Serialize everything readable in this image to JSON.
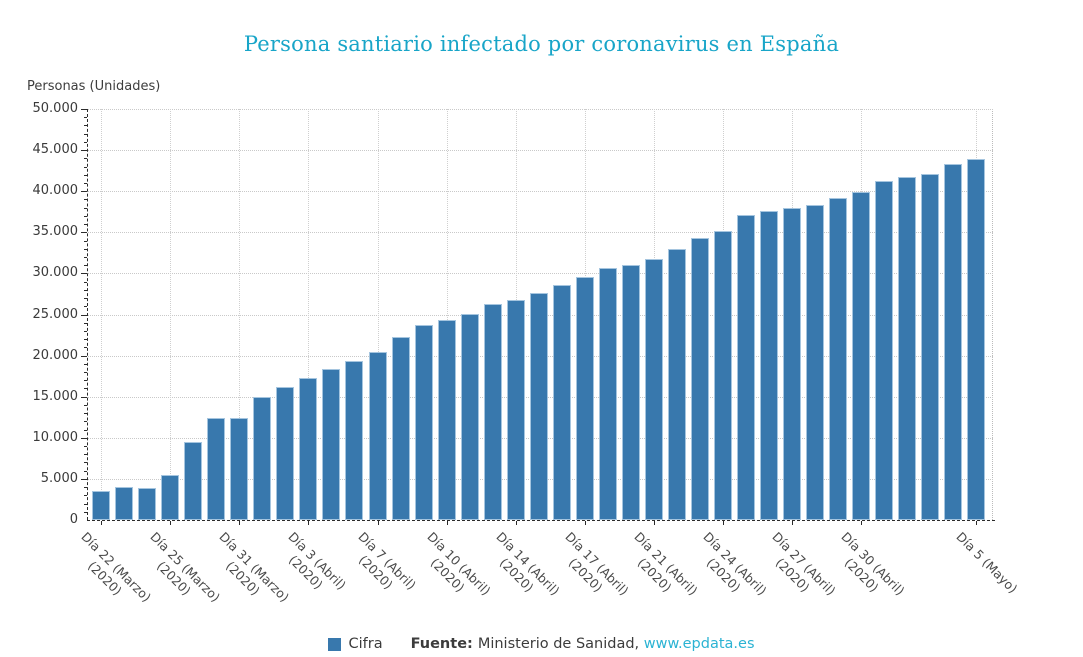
{
  "title": "Persona santiario infectado por coronavirus en España",
  "y_axis_title": "Personas (Unidades)",
  "legend": {
    "label": "Cifra"
  },
  "source": {
    "prefix": "Fuente:",
    "text": "Ministerio de Sanidad,",
    "link": "www.epdata.es"
  },
  "colors": {
    "bar": "#3878ad",
    "title": "#18a5c8",
    "link": "#2bb3d3",
    "grid": "#c9c9c9",
    "axis": "#2b2b2b",
    "text": "#3d3d3d"
  },
  "chart_data": {
    "type": "bar",
    "title": "Persona santiario infectado por coronavirus en España",
    "xlabel": "",
    "ylabel": "Personas (Unidades)",
    "ylim": [
      0,
      50000
    ],
    "grid": true,
    "legend_position": "bottom",
    "series_name": "Cifra",
    "values": [
      3500,
      4000,
      3950,
      5500,
      9500,
      12400,
      12400,
      15000,
      16200,
      17250,
      18350,
      19400,
      20500,
      22300,
      23700,
      24300,
      25100,
      26300,
      26800,
      27650,
      28550,
      29600,
      30700,
      31050,
      31700,
      33000,
      34300,
      35200,
      37150,
      37600,
      37950,
      38350,
      39200,
      39900,
      41200,
      41700,
      42100,
      43300,
      43950
    ],
    "y_ticks": [
      {
        "value": 0,
        "label": "0"
      },
      {
        "value": 5000,
        "label": "5.000"
      },
      {
        "value": 10000,
        "label": "10.000"
      },
      {
        "value": 15000,
        "label": "15.000"
      },
      {
        "value": 20000,
        "label": "20.000"
      },
      {
        "value": 25000,
        "label": "25.000"
      },
      {
        "value": 30000,
        "label": "30.000"
      },
      {
        "value": 35000,
        "label": "35.000"
      },
      {
        "value": 40000,
        "label": "40.000"
      },
      {
        "value": 45000,
        "label": "45.000"
      },
      {
        "value": 50000,
        "label": "50.000"
      }
    ],
    "x_tick_labels": [
      {
        "index": 0,
        "lines": [
          "Día 22 (Marzo)",
          "(2020)"
        ]
      },
      {
        "index": 3,
        "lines": [
          "Día 25 (Marzo)",
          "(2020)"
        ]
      },
      {
        "index": 6,
        "lines": [
          "Día 31 (Marzo)",
          "(2020)"
        ]
      },
      {
        "index": 9,
        "lines": [
          "Día 3 (Abril)",
          "(2020)"
        ]
      },
      {
        "index": 12,
        "lines": [
          "Día 7 (Abril)",
          "(2020)"
        ]
      },
      {
        "index": 15,
        "lines": [
          "Día 10 (Abril)",
          "(2020)"
        ]
      },
      {
        "index": 18,
        "lines": [
          "Día 14 (Abril)",
          "(2020)"
        ]
      },
      {
        "index": 21,
        "lines": [
          "Día 17 (Abril)",
          "(2020)"
        ]
      },
      {
        "index": 24,
        "lines": [
          "Día 21 (Abril)",
          "(2020)"
        ]
      },
      {
        "index": 27,
        "lines": [
          "Día 24 (Abril)",
          "(2020)"
        ]
      },
      {
        "index": 30,
        "lines": [
          "Día 27 (Abril)",
          "(2020)"
        ]
      },
      {
        "index": 33,
        "lines": [
          "Día 30 (Abril)",
          "(2020)"
        ]
      },
      {
        "index": 38,
        "lines": [
          "Día 5 (Mayo)"
        ]
      }
    ]
  }
}
